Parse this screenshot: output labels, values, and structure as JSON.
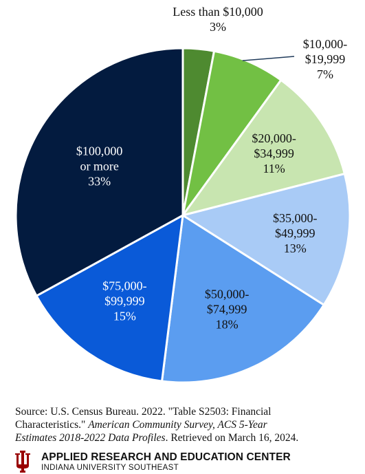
{
  "chart_data": {
    "type": "pie",
    "slices": [
      {
        "label_lines": [
          "Less than $10,000",
          "3%"
        ],
        "value": 3,
        "color": "#4e8a30",
        "label_color": "#111111"
      },
      {
        "label_lines": [
          "$10,000-",
          "$19,999",
          "7%"
        ],
        "value": 7,
        "color": "#72c044",
        "label_color": "#111111"
      },
      {
        "label_lines": [
          "$20,000-",
          "$34,999",
          "11%"
        ],
        "value": 11,
        "color": "#c8e5b0",
        "label_color": "#111111"
      },
      {
        "label_lines": [
          "$35,000-",
          "$49,999",
          "13%"
        ],
        "value": 13,
        "color": "#a9cbf6",
        "label_color": "#111111"
      },
      {
        "label_lines": [
          "$50,000-",
          "$74,999",
          "18%"
        ],
        "value": 18,
        "color": "#5b9df0",
        "label_color": "#111111"
      },
      {
        "label_lines": [
          "$75,000-",
          "$99,999",
          "15%"
        ],
        "value": 15,
        "color": "#0a5ad8",
        "label_color": "#ffffff"
      },
      {
        "label_lines": [
          "$100,000",
          "or more",
          "33%"
        ],
        "value": 33,
        "color": "#031b3f",
        "label_color": "#ffffff"
      }
    ]
  },
  "source": {
    "line1": "Source: U.S. Census Bureau. 2022. \"Table S2503: Financial",
    "line2_plain": "Characteristics.\" ",
    "line2_italic": "American Community Survey, ACS 5-Year",
    "line3_italic": "Estimates 2018-2022 Data Profiles",
    "line3_plain": ". Retrieved on March 16, 2024."
  },
  "footer": {
    "org_name": "APPLIED RESEARCH AND EDUCATION CENTER",
    "org_sub": "INDIANA UNIVERSITY SOUTHEAST",
    "logo_color": "#990000"
  }
}
